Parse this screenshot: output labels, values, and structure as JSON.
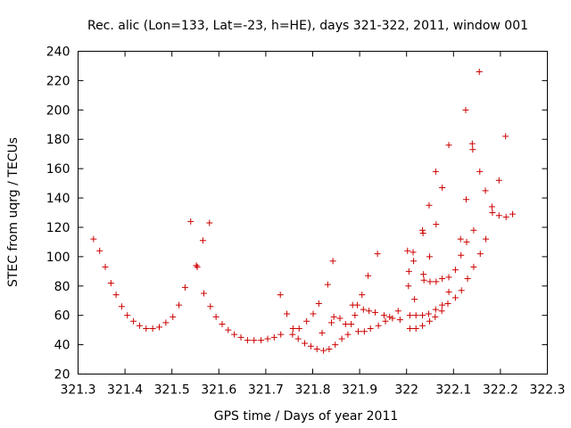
{
  "chart_data": {
    "type": "scatter",
    "title": "Rec. alic (Lon=133, Lat=-23, h=HE), days 321-322, 2011, window 001",
    "xlabel": "GPS time / Days of year 2011",
    "ylabel": "STEC from uqrg / TECUs",
    "xlim": [
      321.3,
      322.3
    ],
    "ylim": [
      20,
      240
    ],
    "xticks": [
      "321.3",
      "321.4",
      "321.5",
      "321.6",
      "321.7",
      "321.8",
      "321.9",
      "322",
      "322.1",
      "322.2",
      "322.3"
    ],
    "yticks": [
      "20",
      "40",
      "60",
      "80",
      "100",
      "120",
      "140",
      "160",
      "180",
      "200",
      "220",
      "240"
    ],
    "grid": false,
    "marker": "+",
    "marker_color": "#cc0000",
    "points": [
      [
        321.333,
        112
      ],
      [
        321.346,
        104
      ],
      [
        321.358,
        93
      ],
      [
        321.37,
        82
      ],
      [
        321.381,
        74
      ],
      [
        321.393,
        66
      ],
      [
        321.405,
        60
      ],
      [
        321.418,
        56
      ],
      [
        321.431,
        53
      ],
      [
        321.445,
        51
      ],
      [
        321.459,
        51
      ],
      [
        321.473,
        52
      ],
      [
        321.487,
        55
      ],
      [
        321.502,
        59
      ],
      [
        321.515,
        67
      ],
      [
        321.528,
        79
      ],
      [
        321.54,
        124
      ],
      [
        321.552,
        94
      ],
      [
        321.554,
        93
      ],
      [
        321.566,
        111
      ],
      [
        321.568,
        75
      ],
      [
        321.58,
        123
      ],
      [
        321.582,
        66
      ],
      [
        321.594,
        59
      ],
      [
        321.607,
        54
      ],
      [
        321.62,
        50
      ],
      [
        321.633,
        47
      ],
      [
        321.647,
        45
      ],
      [
        321.661,
        43
      ],
      [
        321.675,
        43
      ],
      [
        321.69,
        43
      ],
      [
        321.704,
        44
      ],
      [
        321.718,
        45
      ],
      [
        321.731,
        74
      ],
      [
        321.732,
        47
      ],
      [
        321.745,
        61
      ],
      [
        321.757,
        47
      ],
      [
        321.758,
        51
      ],
      [
        321.769,
        44
      ],
      [
        321.771,
        51
      ],
      [
        321.783,
        41
      ],
      [
        321.787,
        56
      ],
      [
        321.796,
        39
      ],
      [
        321.801,
        61
      ],
      [
        321.809,
        37
      ],
      [
        321.813,
        68
      ],
      [
        321.82,
        48
      ],
      [
        321.823,
        36
      ],
      [
        321.832,
        81
      ],
      [
        321.835,
        37
      ],
      [
        321.84,
        55
      ],
      [
        321.843,
        97
      ],
      [
        321.845,
        59
      ],
      [
        321.848,
        40
      ],
      [
        321.858,
        58
      ],
      [
        321.862,
        44
      ],
      [
        321.87,
        54
      ],
      [
        321.875,
        47
      ],
      [
        321.882,
        54
      ],
      [
        321.885,
        67
      ],
      [
        321.89,
        60
      ],
      [
        321.895,
        67
      ],
      [
        321.897,
        49
      ],
      [
        321.905,
        74
      ],
      [
        321.908,
        64
      ],
      [
        321.91,
        49
      ],
      [
        321.918,
        87
      ],
      [
        321.92,
        63
      ],
      [
        321.923,
        51
      ],
      [
        321.933,
        62
      ],
      [
        321.938,
        102
      ],
      [
        321.94,
        53
      ],
      [
        321.952,
        60
      ],
      [
        321.955,
        56
      ],
      [
        321.964,
        59
      ],
      [
        321.97,
        58
      ],
      [
        321.982,
        63
      ],
      [
        321.986,
        57
      ],
      [
        322.002,
        104
      ],
      [
        322.005,
        90
      ],
      [
        322.004,
        80
      ],
      [
        322.007,
        60
      ],
      [
        322.007,
        51
      ],
      [
        322.014,
        103
      ],
      [
        322.015,
        97
      ],
      [
        322.017,
        71
      ],
      [
        322.02,
        60
      ],
      [
        322.02,
        51
      ],
      [
        322.034,
        118
      ],
      [
        322.035,
        116
      ],
      [
        322.036,
        88
      ],
      [
        322.037,
        84
      ],
      [
        322.034,
        60
      ],
      [
        322.034,
        53
      ],
      [
        322.048,
        135
      ],
      [
        322.049,
        100
      ],
      [
        322.05,
        83
      ],
      [
        322.047,
        61
      ],
      [
        322.049,
        56
      ],
      [
        322.062,
        158
      ],
      [
        322.063,
        122
      ],
      [
        322.063,
        83
      ],
      [
        322.062,
        64
      ],
      [
        322.061,
        59
      ],
      [
        322.076,
        147
      ],
      [
        322.076,
        85
      ],
      [
        322.076,
        67
      ],
      [
        322.075,
        63
      ],
      [
        322.09,
        176
      ],
      [
        322.09,
        86
      ],
      [
        322.09,
        76
      ],
      [
        322.088,
        68
      ],
      [
        322.104,
        91
      ],
      [
        322.104,
        72
      ],
      [
        322.115,
        112
      ],
      [
        322.116,
        101
      ],
      [
        322.117,
        77
      ],
      [
        322.126,
        200
      ],
      [
        322.127,
        139
      ],
      [
        322.128,
        110
      ],
      [
        322.13,
        85
      ],
      [
        322.14,
        177
      ],
      [
        322.141,
        173
      ],
      [
        322.143,
        118
      ],
      [
        322.143,
        93
      ],
      [
        322.155,
        226
      ],
      [
        322.156,
        158
      ],
      [
        322.157,
        102
      ],
      [
        322.168,
        145
      ],
      [
        322.169,
        112
      ],
      [
        322.182,
        134
      ],
      [
        322.183,
        130
      ],
      [
        322.197,
        152
      ],
      [
        322.197,
        128
      ],
      [
        322.211,
        182
      ],
      [
        322.212,
        127
      ],
      [
        322.226,
        129
      ]
    ]
  }
}
